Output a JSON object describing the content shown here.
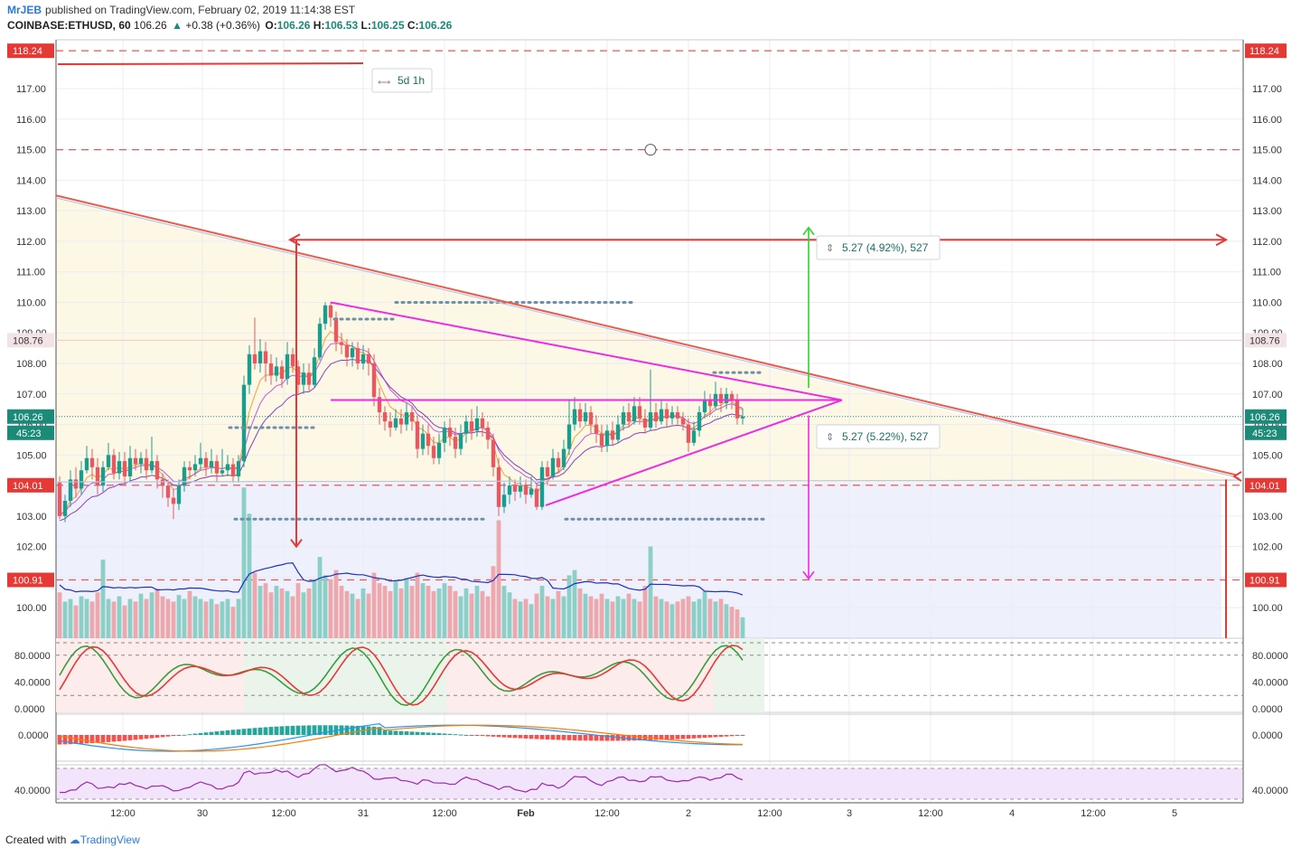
{
  "header": {
    "author": "MrJEB",
    "published": "published on TradingView.com, February 02, 2019 11:14:38 EST",
    "symbol": "COINBASE:ETHUSD, 60",
    "last": "106.26",
    "change": "+0.38 (+0.36%)",
    "o_label": "O:",
    "o": "106.26",
    "h_label": "H:",
    "h": "106.53",
    "l_label": "L:",
    "l": "106.25",
    "c_label": "C:",
    "c": "106.26"
  },
  "footer": {
    "created_with": "Created with",
    "brand": "TradingView"
  },
  "chart_data": {
    "type": "candlestick",
    "symbol": "COINBASE:ETHUSD",
    "interval": "60",
    "price_axis_ticks": [
      "117.00",
      "116.00",
      "115.00",
      "114.00",
      "113.00",
      "112.00",
      "111.00",
      "110.00",
      "109.00",
      "108.00",
      "107.00",
      "106.00",
      "105.00",
      "104.00",
      "103.00",
      "102.00",
      "101.00",
      "100.00"
    ],
    "ylim": [
      99,
      118.6
    ],
    "price_badges": [
      {
        "value": 118.24,
        "label": "118.24",
        "color": "#e53935"
      },
      {
        "value": 108.76,
        "label": "108.76",
        "color": "#f3e3e6"
      },
      {
        "value": 106.26,
        "label": "106.26",
        "color": "#1b8a78"
      },
      {
        "value": 104.01,
        "label": "104.01",
        "color": "#e53935"
      },
      {
        "value": 100.91,
        "label": "100.91",
        "color": "#e53935"
      }
    ],
    "countdown": "45:23",
    "dashed_levels": [
      118.24,
      115.0,
      104.01,
      100.91
    ],
    "x_axis_ticks": [
      "12:00",
      "30",
      "12:00",
      "31",
      "12:00",
      "Feb",
      "12:00",
      "2",
      "12:00",
      "3",
      "12:00",
      "4",
      "12:00",
      "5"
    ],
    "date_range_tool": "5d 1h",
    "measure_up": "5.27 (4.92%), 527",
    "measure_down": "5.27 (5.22%), 527",
    "candles": [
      [
        104.1,
        103.0,
        104.3,
        102.9
      ],
      [
        103.0,
        103.5,
        103.7,
        102.8
      ],
      [
        103.5,
        104.2,
        104.5,
        103.3
      ],
      [
        104.2,
        103.9,
        104.6,
        103.6
      ],
      [
        103.9,
        104.5,
        104.8,
        103.7
      ],
      [
        104.5,
        104.9,
        105.3,
        104.4
      ],
      [
        104.9,
        104.6,
        105.2,
        104.2
      ],
      [
        104.6,
        104.0,
        104.9,
        103.7
      ],
      [
        104.0,
        104.6,
        104.8,
        103.8
      ],
      [
        104.6,
        105.0,
        105.4,
        104.5
      ],
      [
        105.0,
        104.4,
        105.2,
        104.2
      ],
      [
        104.4,
        104.8,
        105.1,
        104.2
      ],
      [
        104.8,
        104.3,
        105.1,
        104.0
      ],
      [
        104.3,
        104.9,
        105.3,
        104.1
      ],
      [
        104.9,
        104.7,
        105.2,
        104.5
      ],
      [
        104.7,
        104.9,
        105.1,
        104.4
      ],
      [
        104.9,
        104.5,
        105.2,
        104.2
      ],
      [
        104.5,
        104.8,
        105.6,
        104.4
      ],
      [
        104.8,
        104.2,
        105.0,
        103.9
      ],
      [
        104.2,
        104.0,
        104.4,
        103.6
      ],
      [
        104.0,
        103.6,
        104.2,
        103.3
      ],
      [
        103.6,
        103.4,
        103.9,
        102.9
      ],
      [
        103.4,
        104.0,
        104.2,
        103.2
      ],
      [
        104.0,
        104.6,
        104.8,
        103.8
      ],
      [
        104.6,
        104.5,
        104.8,
        104.2
      ],
      [
        104.5,
        104.7,
        105.0,
        104.3
      ],
      [
        104.7,
        104.9,
        105.4,
        104.5
      ],
      [
        104.9,
        104.6,
        105.1,
        104.3
      ],
      [
        104.6,
        104.8,
        105.2,
        104.4
      ],
      [
        104.8,
        104.4,
        105.0,
        104.1
      ],
      [
        104.4,
        104.5,
        105.2,
        104.3
      ],
      [
        104.5,
        104.7,
        105.0,
        104.3
      ],
      [
        104.7,
        104.3,
        104.9,
        104.1
      ],
      [
        104.3,
        104.8,
        105.0,
        104.1
      ],
      [
        104.8,
        107.3,
        107.6,
        104.6
      ],
      [
        107.3,
        108.3,
        108.6,
        107.0
      ],
      [
        108.3,
        108.0,
        109.5,
        107.8
      ],
      [
        108.0,
        108.4,
        108.8,
        107.7
      ],
      [
        108.4,
        108.0,
        108.7,
        107.4
      ],
      [
        108.0,
        107.6,
        108.3,
        107.3
      ],
      [
        107.6,
        107.9,
        108.2,
        107.4
      ],
      [
        107.9,
        107.5,
        108.1,
        107.2
      ],
      [
        107.5,
        108.3,
        108.7,
        107.3
      ],
      [
        108.3,
        107.9,
        108.5,
        107.7
      ],
      [
        107.9,
        107.3,
        108.1,
        107.0
      ],
      [
        107.3,
        107.7,
        108.0,
        107.0
      ],
      [
        107.7,
        107.3,
        108.0,
        107.1
      ],
      [
        107.3,
        108.2,
        108.5,
        107.2
      ],
      [
        108.2,
        109.3,
        109.5,
        108.1
      ],
      [
        109.3,
        109.9,
        110.0,
        109.1
      ],
      [
        109.9,
        109.5,
        110.0,
        109.2
      ],
      [
        109.5,
        108.7,
        109.7,
        108.4
      ],
      [
        108.7,
        108.6,
        109.0,
        108.3
      ],
      [
        108.6,
        108.2,
        108.8,
        107.9
      ],
      [
        108.2,
        108.5,
        108.7,
        107.9
      ],
      [
        108.5,
        108.0,
        108.7,
        107.8
      ],
      [
        108.0,
        108.3,
        108.6,
        107.8
      ],
      [
        108.3,
        108.0,
        108.5,
        107.6
      ],
      [
        108.0,
        106.9,
        108.3,
        106.6
      ],
      [
        106.9,
        106.4,
        107.2,
        106.0
      ],
      [
        106.4,
        106.1,
        106.6,
        105.8
      ],
      [
        106.1,
        105.9,
        106.4,
        105.6
      ],
      [
        105.9,
        106.2,
        106.5,
        105.8
      ],
      [
        106.2,
        106.0,
        106.5,
        105.7
      ],
      [
        106.0,
        106.4,
        106.7,
        105.8
      ],
      [
        106.4,
        106.1,
        106.6,
        105.8
      ],
      [
        106.1,
        105.2,
        106.3,
        104.9
      ],
      [
        105.2,
        105.7,
        106.0,
        105.0
      ],
      [
        105.7,
        105.3,
        106.0,
        105.0
      ],
      [
        105.3,
        104.9,
        105.6,
        104.7
      ],
      [
        104.9,
        105.4,
        105.7,
        104.7
      ],
      [
        105.4,
        105.9,
        106.1,
        105.1
      ],
      [
        105.9,
        105.6,
        106.2,
        105.3
      ],
      [
        105.6,
        105.2,
        105.9,
        104.9
      ],
      [
        105.2,
        105.7,
        106.0,
        105.0
      ],
      [
        105.7,
        106.1,
        106.3,
        105.4
      ],
      [
        106.1,
        105.8,
        106.5,
        105.5
      ],
      [
        105.8,
        106.2,
        106.6,
        105.6
      ],
      [
        106.2,
        105.9,
        106.4,
        105.6
      ],
      [
        105.9,
        105.5,
        106.1,
        105.2
      ],
      [
        105.5,
        104.6,
        105.7,
        104.3
      ],
      [
        104.6,
        103.3,
        104.9,
        103.0
      ],
      [
        103.3,
        103.7,
        104.1,
        103.1
      ],
      [
        103.7,
        104.0,
        104.3,
        103.4
      ],
      [
        104.0,
        103.8,
        104.2,
        103.5
      ],
      [
        103.8,
        104.0,
        104.3,
        103.6
      ],
      [
        104.0,
        103.7,
        104.2,
        103.4
      ],
      [
        103.7,
        103.9,
        104.3,
        103.6
      ],
      [
        103.9,
        103.3,
        104.1,
        103.2
      ],
      [
        103.3,
        104.6,
        104.8,
        103.2
      ],
      [
        104.6,
        104.3,
        104.8,
        104.0
      ],
      [
        104.3,
        104.9,
        105.2,
        104.2
      ],
      [
        104.9,
        104.6,
        105.1,
        104.4
      ],
      [
        104.6,
        105.2,
        105.5,
        104.5
      ],
      [
        105.2,
        106.0,
        106.8,
        105.0
      ],
      [
        106.0,
        106.5,
        106.9,
        105.8
      ],
      [
        106.5,
        106.1,
        106.7,
        105.9
      ],
      [
        106.1,
        106.4,
        106.7,
        106.0
      ],
      [
        106.4,
        106.0,
        106.6,
        105.7
      ],
      [
        106.0,
        105.7,
        106.3,
        105.4
      ],
      [
        105.7,
        105.3,
        106.0,
        105.1
      ],
      [
        105.3,
        105.8,
        106.0,
        105.1
      ],
      [
        105.8,
        105.5,
        106.1,
        105.3
      ],
      [
        105.5,
        106.0,
        106.3,
        105.4
      ],
      [
        106.0,
        106.4,
        106.6,
        105.8
      ],
      [
        106.4,
        106.1,
        106.7,
        105.9
      ],
      [
        106.1,
        106.6,
        106.9,
        106.0
      ],
      [
        106.6,
        106.2,
        106.9,
        106.0
      ],
      [
        106.2,
        105.9,
        106.5,
        105.7
      ],
      [
        105.9,
        106.4,
        107.8,
        105.8
      ],
      [
        106.4,
        106.1,
        106.7,
        105.9
      ],
      [
        106.1,
        106.5,
        106.8,
        106.0
      ],
      [
        106.5,
        106.2,
        106.7,
        105.9
      ],
      [
        106.2,
        106.4,
        106.6,
        106.0
      ],
      [
        106.4,
        106.2,
        106.6,
        106.0
      ],
      [
        106.2,
        106.0,
        106.4,
        105.8
      ],
      [
        106.0,
        105.4,
        106.2,
        105.1
      ],
      [
        105.4,
        105.8,
        106.1,
        105.3
      ],
      [
        105.8,
        106.4,
        106.6,
        105.6
      ],
      [
        106.4,
        106.8,
        107.1,
        106.2
      ],
      [
        106.8,
        106.6,
        107.0,
        106.3
      ],
      [
        106.6,
        107.0,
        107.4,
        106.5
      ],
      [
        107.0,
        106.7,
        107.2,
        106.4
      ],
      [
        106.7,
        107.0,
        107.2,
        106.5
      ],
      [
        107.0,
        106.8,
        107.1,
        106.5
      ],
      [
        106.8,
        106.2,
        107.0,
        106.0
      ],
      [
        106.2,
        106.26,
        106.53,
        106.0
      ]
    ],
    "volume_relative": [
      0.35,
      0.28,
      0.3,
      0.25,
      0.32,
      0.3,
      0.28,
      0.35,
      0.6,
      0.3,
      0.28,
      0.32,
      0.25,
      0.3,
      0.28,
      0.34,
      0.3,
      0.35,
      0.38,
      0.32,
      0.3,
      0.28,
      0.33,
      0.3,
      0.36,
      0.32,
      0.3,
      0.28,
      0.3,
      0.26,
      0.28,
      0.3,
      0.24,
      0.3,
      1.15,
      0.95,
      0.5,
      0.4,
      0.42,
      0.35,
      0.4,
      0.38,
      0.36,
      0.32,
      0.42,
      0.35,
      0.38,
      0.45,
      0.62,
      0.48,
      0.45,
      0.52,
      0.4,
      0.36,
      0.34,
      0.3,
      0.38,
      0.34,
      0.5,
      0.42,
      0.4,
      0.36,
      0.44,
      0.38,
      0.46,
      0.4,
      0.5,
      0.42,
      0.4,
      0.36,
      0.38,
      0.42,
      0.4,
      0.36,
      0.32,
      0.38,
      0.34,
      0.4,
      0.36,
      0.32,
      0.55,
      0.9,
      0.4,
      0.35,
      0.3,
      0.28,
      0.3,
      0.26,
      0.34,
      0.4,
      0.32,
      0.3,
      0.36,
      0.32,
      0.48,
      0.52,
      0.38,
      0.34,
      0.32,
      0.3,
      0.34,
      0.3,
      0.28,
      0.32,
      0.3,
      0.34,
      0.3,
      0.28,
      0.4,
      0.7,
      0.32,
      0.3,
      0.28,
      0.26,
      0.28,
      0.3,
      0.32,
      0.28,
      0.3,
      0.36,
      0.3,
      0.28,
      0.3,
      0.26,
      0.24,
      0.22,
      0.16
    ],
    "stoch_ticks": [
      "80.0000",
      "40.0000",
      "0.0000"
    ],
    "macd_ticks": [
      "0.0000"
    ],
    "rsi_ticks": [
      "40.0000"
    ]
  }
}
